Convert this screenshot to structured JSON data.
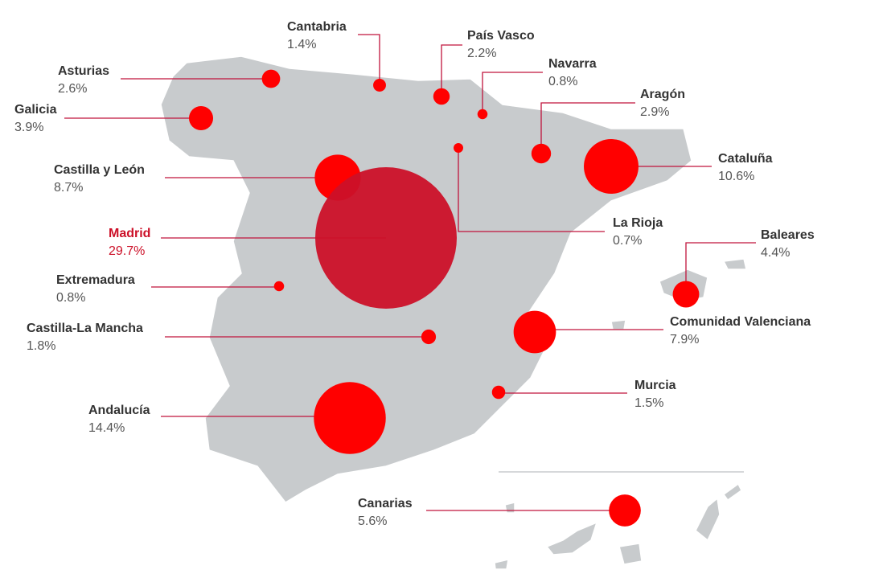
{
  "chart_data": {
    "type": "bubble-map",
    "categories": [
      "Asturias",
      "Galicia",
      "Cantabria",
      "País Vasco",
      "Navarra",
      "Aragón",
      "Cataluña",
      "Castilla y León",
      "Madrid",
      "La Rioja",
      "Baleares",
      "Extremadura",
      "Castilla-La Mancha",
      "Comunidad Valenciana",
      "Murcia",
      "Andalucía",
      "Canarias"
    ],
    "values": [
      2.6,
      3.9,
      1.4,
      2.2,
      0.8,
      2.9,
      10.6,
      8.7,
      29.7,
      0.7,
      4.4,
      0.8,
      1.8,
      7.9,
      1.5,
      14.4,
      5.6
    ],
    "value_labels": [
      "2.6%",
      "3.9%",
      "1.4%",
      "2.2%",
      "0.8%",
      "2.9%",
      "10.6%",
      "8.7%",
      "29.7%",
      "0.7%",
      "4.4%",
      "0.8%",
      "1.8%",
      "7.9%",
      "1.5%",
      "14.4%",
      "5.6%"
    ],
    "color": "#ff0000",
    "highlight": "Madrid",
    "highlight_color": "#cc1028"
  }
}
